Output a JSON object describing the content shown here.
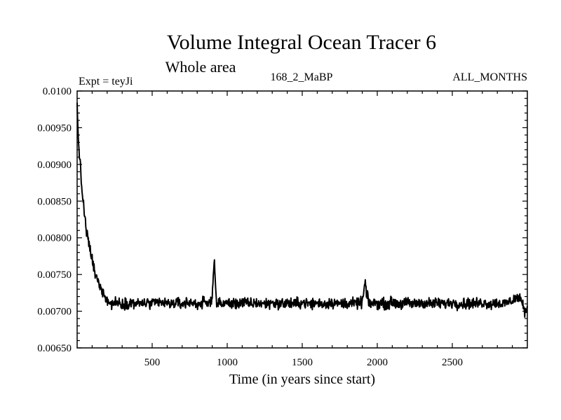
{
  "chart_data": {
    "type": "line",
    "title": "Volume Integral Ocean Tracer 6",
    "subtitle": "Whole area",
    "experiment": "Expt = teyJi",
    "run_label": "168_2_MaBP",
    "period_label": "ALL_MONTHS",
    "xlabel": "Time (in years since start)",
    "ylabel": "",
    "xlim": [
      0,
      3000
    ],
    "ylim": [
      0.0065,
      0.01
    ],
    "x_ticks": [
      500,
      1000,
      1500,
      2000,
      2500
    ],
    "x_tick_labels": [
      "500",
      "1000",
      "1500",
      "2000",
      "2500"
    ],
    "y_ticks": [
      0.0065,
      0.007,
      0.0075,
      0.008,
      0.0085,
      0.009,
      0.0095,
      0.01
    ],
    "y_tick_labels": [
      "0.00650",
      "0.00700",
      "0.00750",
      "0.00800",
      "0.00850",
      "0.00900",
      "0.00950",
      "0.0100"
    ],
    "grid": false,
    "series": [
      {
        "name": "Ocean Tracer 6",
        "color": "#000000",
        "x": [
          0,
          5,
          10,
          20,
          30,
          40,
          50,
          60,
          70,
          80,
          90,
          100,
          110,
          120,
          130,
          140,
          150,
          160,
          170,
          180,
          190,
          200,
          220,
          250,
          300,
          350,
          400,
          450,
          500,
          550,
          600,
          650,
          700,
          750,
          800,
          850,
          880,
          900,
          910,
          915,
          920,
          930,
          950,
          1000,
          1050,
          1100,
          1150,
          1200,
          1250,
          1300,
          1350,
          1400,
          1450,
          1500,
          1550,
          1600,
          1650,
          1700,
          1750,
          1800,
          1850,
          1900,
          1920,
          1930,
          1950,
          2000,
          2050,
          2100,
          2150,
          2200,
          2250,
          2300,
          2350,
          2400,
          2450,
          2500,
          2550,
          2600,
          2650,
          2700,
          2750,
          2800,
          2850,
          2900,
          2950,
          2980,
          3000
        ],
        "values": [
          0.0098,
          0.0095,
          0.0093,
          0.009,
          0.0087,
          0.0085,
          0.0083,
          0.0081,
          0.008,
          0.0079,
          0.0078,
          0.0077,
          0.0076,
          0.0075,
          0.00745,
          0.0074,
          0.00735,
          0.0073,
          0.00728,
          0.00725,
          0.0072,
          0.00715,
          0.0071,
          0.00712,
          0.0071,
          0.00712,
          0.0071,
          0.00711,
          0.0071,
          0.00712,
          0.0071,
          0.00711,
          0.0071,
          0.00712,
          0.0071,
          0.00711,
          0.0071,
          0.0072,
          0.0076,
          0.0077,
          0.0074,
          0.0071,
          0.0071,
          0.00711,
          0.0071,
          0.00712,
          0.0071,
          0.00711,
          0.0071,
          0.00712,
          0.0071,
          0.00711,
          0.0071,
          0.00712,
          0.0071,
          0.00711,
          0.0071,
          0.00712,
          0.0071,
          0.00711,
          0.0071,
          0.00712,
          0.0074,
          0.0072,
          0.0071,
          0.00711,
          0.0071,
          0.00712,
          0.0071,
          0.00711,
          0.0071,
          0.00712,
          0.0071,
          0.00711,
          0.0071,
          0.00712,
          0.0071,
          0.00711,
          0.0071,
          0.00712,
          0.0071,
          0.00711,
          0.0071,
          0.00715,
          0.0072,
          0.007,
          0.00705
        ]
      }
    ]
  }
}
